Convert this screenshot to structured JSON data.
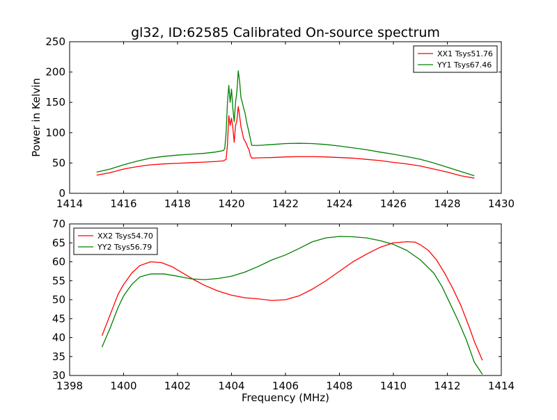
{
  "figure": {
    "title": "gl32, ID:62585 Calibrated On-source spectrum",
    "ylabel": "Power in Kelvin",
    "xlabel": "Frequency (MHz)"
  },
  "chart_data": [
    {
      "type": "line",
      "title": "gl32, ID:62585 Calibrated On-source spectrum",
      "xlabel": "",
      "ylabel": "Power in Kelvin",
      "xlim": [
        1414,
        1430
      ],
      "ylim": [
        0,
        250
      ],
      "xticks": [
        1414,
        1416,
        1418,
        1420,
        1422,
        1424,
        1426,
        1428,
        1430
      ],
      "yticks": [
        0,
        50,
        100,
        150,
        200,
        250
      ],
      "grid": false,
      "legend_position": "top-right",
      "series": [
        {
          "name": "XX1 Tsys51.76",
          "color": "#ff0000",
          "points": [
            [
              1415.0,
              30
            ],
            [
              1415.5,
              34
            ],
            [
              1416.0,
              40
            ],
            [
              1416.5,
              44
            ],
            [
              1417.0,
              47
            ],
            [
              1417.5,
              48.5
            ],
            [
              1418.0,
              49.5
            ],
            [
              1418.5,
              50.5
            ],
            [
              1419.0,
              51.5
            ],
            [
              1419.4,
              52.5
            ],
            [
              1419.7,
              53.5
            ],
            [
              1419.8,
              56
            ],
            [
              1419.85,
              80
            ],
            [
              1419.9,
              128
            ],
            [
              1419.95,
              112
            ],
            [
              1420.0,
              124
            ],
            [
              1420.05,
              108
            ],
            [
              1420.1,
              84
            ],
            [
              1420.15,
              112
            ],
            [
              1420.2,
              120
            ],
            [
              1420.25,
              143
            ],
            [
              1420.3,
              128
            ],
            [
              1420.35,
              110
            ],
            [
              1420.4,
              100
            ],
            [
              1420.45,
              90
            ],
            [
              1420.5,
              86
            ],
            [
              1420.55,
              82
            ],
            [
              1420.6,
              76
            ],
            [
              1420.65,
              72
            ],
            [
              1420.7,
              62
            ],
            [
              1420.75,
              58
            ],
            [
              1421.0,
              58.5
            ],
            [
              1421.5,
              59
            ],
            [
              1422.0,
              60
            ],
            [
              1422.5,
              60.5
            ],
            [
              1423.0,
              60.5
            ],
            [
              1423.5,
              60
            ],
            [
              1424.0,
              59
            ],
            [
              1424.5,
              58
            ],
            [
              1425.0,
              56
            ],
            [
              1425.5,
              54
            ],
            [
              1426.0,
              51
            ],
            [
              1426.5,
              48.5
            ],
            [
              1427.0,
              45
            ],
            [
              1427.5,
              40
            ],
            [
              1428.0,
              35
            ],
            [
              1428.5,
              29
            ],
            [
              1429.0,
              25
            ]
          ]
        },
        {
          "name": "YY1 Tsys67.46",
          "color": "#007f00",
          "points": [
            [
              1415.0,
              35
            ],
            [
              1415.5,
              40
            ],
            [
              1416.0,
              47
            ],
            [
              1416.5,
              53
            ],
            [
              1417.0,
              58
            ],
            [
              1417.5,
              61
            ],
            [
              1418.0,
              63
            ],
            [
              1418.5,
              64.5
            ],
            [
              1419.0,
              66
            ],
            [
              1419.4,
              68
            ],
            [
              1419.7,
              70.5
            ],
            [
              1419.75,
              74
            ],
            [
              1419.8,
              100
            ],
            [
              1419.85,
              150
            ],
            [
              1419.9,
              178
            ],
            [
              1419.95,
              150
            ],
            [
              1420.0,
              172
            ],
            [
              1420.05,
              140
            ],
            [
              1420.1,
              118
            ],
            [
              1420.15,
              150
            ],
            [
              1420.2,
              168
            ],
            [
              1420.25,
              202
            ],
            [
              1420.3,
              185
            ],
            [
              1420.35,
              158
            ],
            [
              1420.4,
              150
            ],
            [
              1420.45,
              140
            ],
            [
              1420.5,
              133
            ],
            [
              1420.55,
              120
            ],
            [
              1420.6,
              110
            ],
            [
              1420.65,
              100
            ],
            [
              1420.7,
              90
            ],
            [
              1420.75,
              79
            ],
            [
              1421.0,
              79
            ],
            [
              1421.5,
              80.5
            ],
            [
              1422.0,
              82
            ],
            [
              1422.5,
              82.5
            ],
            [
              1423.0,
              82
            ],
            [
              1423.5,
              80.5
            ],
            [
              1424.0,
              78
            ],
            [
              1424.5,
              75
            ],
            [
              1425.0,
              72
            ],
            [
              1425.5,
              68
            ],
            [
              1426.0,
              64.5
            ],
            [
              1426.5,
              60.5
            ],
            [
              1427.0,
              56
            ],
            [
              1427.5,
              50
            ],
            [
              1428.0,
              43
            ],
            [
              1428.5,
              36
            ],
            [
              1429.0,
              29
            ]
          ]
        }
      ]
    },
    {
      "type": "line",
      "title": "",
      "xlabel": "Frequency (MHz)",
      "ylabel": "",
      "xlim": [
        1398,
        1414
      ],
      "ylim": [
        30,
        70
      ],
      "xticks": [
        1398,
        1400,
        1402,
        1404,
        1406,
        1408,
        1410,
        1412,
        1414
      ],
      "yticks": [
        30,
        35,
        40,
        45,
        50,
        55,
        60,
        65,
        70
      ],
      "grid": false,
      "legend_position": "top-left",
      "series": [
        {
          "name": "XX2 Tsys54.70",
          "color": "#ff0000",
          "points": [
            [
              1399.2,
              40.5
            ],
            [
              1399.5,
              46
            ],
            [
              1399.8,
              51.5
            ],
            [
              1400.0,
              54
            ],
            [
              1400.3,
              57
            ],
            [
              1400.6,
              59
            ],
            [
              1401.0,
              60
            ],
            [
              1401.4,
              59.8
            ],
            [
              1401.8,
              58.7
            ],
            [
              1402.2,
              57
            ],
            [
              1402.6,
              55.3
            ],
            [
              1403.0,
              53.8
            ],
            [
              1403.5,
              52.3
            ],
            [
              1404.0,
              51.2
            ],
            [
              1404.5,
              50.5
            ],
            [
              1405.0,
              50.2
            ],
            [
              1405.5,
              49.8
            ],
            [
              1406.0,
              50
            ],
            [
              1406.5,
              51
            ],
            [
              1407.0,
              52.8
            ],
            [
              1407.5,
              55
            ],
            [
              1408.0,
              57.5
            ],
            [
              1408.5,
              60
            ],
            [
              1409.0,
              62
            ],
            [
              1409.5,
              63.8
            ],
            [
              1410.0,
              65
            ],
            [
              1410.5,
              65.3
            ],
            [
              1410.8,
              65.2
            ],
            [
              1411.0,
              64.5
            ],
            [
              1411.3,
              63
            ],
            [
              1411.6,
              60.5
            ],
            [
              1411.9,
              57
            ],
            [
              1412.2,
              53
            ],
            [
              1412.5,
              48.5
            ],
            [
              1412.8,
              43
            ],
            [
              1413.0,
              39
            ],
            [
              1413.3,
              34
            ]
          ]
        },
        {
          "name": "YY2 Tsys56.79",
          "color": "#007f00",
          "points": [
            [
              1399.2,
              37.5
            ],
            [
              1399.5,
              42.5
            ],
            [
              1399.8,
              48
            ],
            [
              1400.0,
              51
            ],
            [
              1400.3,
              54
            ],
            [
              1400.6,
              56
            ],
            [
              1401.0,
              56.8
            ],
            [
              1401.5,
              56.8
            ],
            [
              1402.0,
              56.2
            ],
            [
              1402.5,
              55.5
            ],
            [
              1403.0,
              55.3
            ],
            [
              1403.5,
              55.6
            ],
            [
              1404.0,
              56.2
            ],
            [
              1404.5,
              57.3
            ],
            [
              1405.0,
              58.8
            ],
            [
              1405.5,
              60.5
            ],
            [
              1406.0,
              61.8
            ],
            [
              1406.5,
              63.5
            ],
            [
              1407.0,
              65.3
            ],
            [
              1407.5,
              66.3
            ],
            [
              1408.0,
              66.7
            ],
            [
              1408.5,
              66.6
            ],
            [
              1409.0,
              66.3
            ],
            [
              1409.5,
              65.6
            ],
            [
              1410.0,
              64.6
            ],
            [
              1410.5,
              63
            ],
            [
              1411.0,
              60.5
            ],
            [
              1411.5,
              57
            ],
            [
              1411.8,
              53.5
            ],
            [
              1412.1,
              49
            ],
            [
              1412.4,
              44.5
            ],
            [
              1412.7,
              39.5
            ],
            [
              1413.0,
              33.5
            ],
            [
              1413.3,
              30.3
            ]
          ]
        }
      ]
    }
  ]
}
